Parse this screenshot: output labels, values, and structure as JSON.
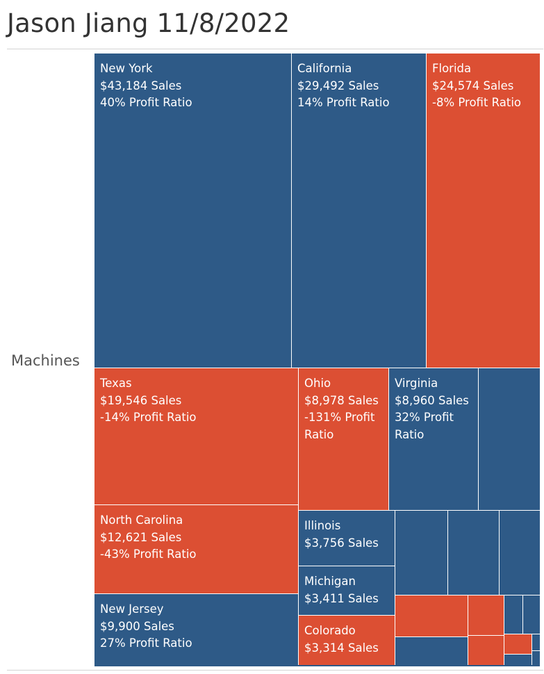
{
  "title": "Jason Jiang 11/8/2022",
  "row_label": "Machines",
  "colors": {
    "positive": "#2e5a87",
    "negative": "#dc4f33"
  },
  "chart_data": {
    "type": "treemap",
    "title": "Jason Jiang 11/8/2022",
    "category": "Machines",
    "size_measure": "Sales",
    "color_measure": "Profit Ratio",
    "items": [
      {
        "state": "New York",
        "sales": 43184,
        "sales_label": "$43,184 Sales",
        "profit_ratio": 0.4,
        "profit_label": "40% Profit Ratio"
      },
      {
        "state": "California",
        "sales": 29492,
        "sales_label": "$29,492 Sales",
        "profit_ratio": 0.14,
        "profit_label": "14% Profit Ratio"
      },
      {
        "state": "Florida",
        "sales": 24574,
        "sales_label": "$24,574 Sales",
        "profit_ratio": -0.08,
        "profit_label": "-8% Profit Ratio"
      },
      {
        "state": "Texas",
        "sales": 19546,
        "sales_label": "$19,546 Sales",
        "profit_ratio": -0.14,
        "profit_label": "-14% Profit Ratio"
      },
      {
        "state": "Ohio",
        "sales": 8978,
        "sales_label": "$8,978 Sales",
        "profit_ratio": -1.31,
        "profit_label": "-131% Profit Ratio"
      },
      {
        "state": "Virginia",
        "sales": 8960,
        "sales_label": "$8,960 Sales",
        "profit_ratio": 0.32,
        "profit_label": "32% Profit Ratio"
      },
      {
        "state": "North Carolina",
        "sales": 12621,
        "sales_label": "$12,621 Sales",
        "profit_ratio": -0.43,
        "profit_label": "-43% Profit Ratio"
      },
      {
        "state": "Illinois",
        "sales": 3756,
        "sales_label": "$3,756 Sales",
        "profit_ratio": null,
        "profit_label": ""
      },
      {
        "state": "Michigan",
        "sales": 3411,
        "sales_label": "$3,411 Sales",
        "profit_ratio": null,
        "profit_label": ""
      },
      {
        "state": "New Jersey",
        "sales": 9900,
        "sales_label": "$9,900 Sales",
        "profit_ratio": 0.27,
        "profit_label": "27% Profit Ratio"
      },
      {
        "state": "Colorado",
        "sales": 3314,
        "sales_label": "$3,314 Sales",
        "profit_ratio": null,
        "profit_label": ""
      }
    ],
    "unlabeled_tiles": [
      {
        "sign": "positive"
      },
      {
        "sign": "positive"
      },
      {
        "sign": "positive"
      },
      {
        "sign": "positive"
      },
      {
        "sign": "negative"
      },
      {
        "sign": "negative"
      },
      {
        "sign": "positive"
      },
      {
        "sign": "positive"
      },
      {
        "sign": "positive"
      },
      {
        "sign": "negative"
      },
      {
        "sign": "negative"
      },
      {
        "sign": "positive"
      },
      {
        "sign": "positive"
      },
      {
        "sign": "positive"
      },
      {
        "sign": "positive"
      }
    ]
  }
}
